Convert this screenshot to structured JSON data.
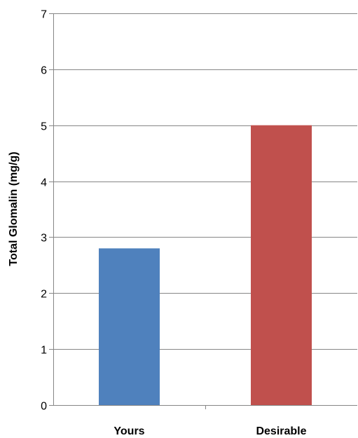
{
  "chart_data": {
    "type": "bar",
    "title": "",
    "xlabel": "",
    "ylabel": "Total Glomalin (mg/g)",
    "categories": [
      "Yours",
      "Desirable"
    ],
    "values": [
      2.8,
      5.0
    ],
    "colors": [
      "#4f81bd",
      "#c0504d"
    ],
    "ylim": [
      0,
      7
    ],
    "yticks": [
      0,
      1,
      2,
      3,
      4,
      5,
      6,
      7
    ],
    "grid": true,
    "gridline_color": "#868686",
    "axis_color": "#868686"
  }
}
